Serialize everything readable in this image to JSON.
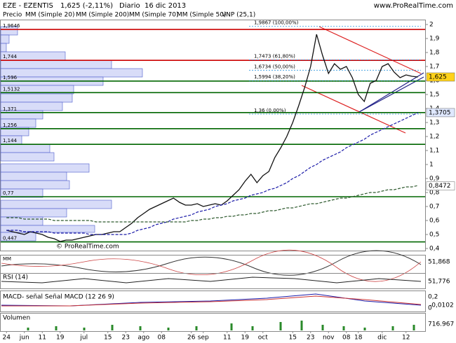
{
  "chart_data": {
    "type": "line",
    "site": "www.ProRealTime.com",
    "title": "EZE - EZENTIS",
    "last": "1,625 (-2,11%)",
    "period": "Diario",
    "date": "16 dic 2013",
    "legend_texts": [
      "Precio",
      "MM (Simple 20)",
      "MM (Simple 200)",
      "MM (Simple 70)",
      "MM (Simple 50)",
      "VNP (25,1)"
    ],
    "watermark": "© ProRealTime.com",
    "categories": [
      "24",
      null,
      null,
      "jun",
      null,
      null,
      "11",
      null,
      null,
      "19",
      null,
      null,
      null,
      "jul",
      null,
      null,
      null,
      "15",
      null,
      null,
      "23",
      null,
      null,
      "ago",
      null,
      null,
      "08",
      null,
      null,
      null,
      null,
      "26",
      null,
      "sep",
      null,
      null,
      null,
      "11",
      null,
      null,
      "19",
      null,
      null,
      "oct",
      null,
      null,
      null,
      null,
      "15",
      null,
      null,
      "23",
      null,
      null,
      "nov",
      null,
      null,
      "08",
      null,
      "18",
      null,
      null,
      null,
      "dic",
      null,
      null,
      null,
      "12",
      null,
      null
    ],
    "series": [
      {
        "name": "Precio",
        "color": "#111111",
        "values": [
          0.53,
          0.52,
          0.51,
          0.5,
          0.52,
          0.51,
          0.5,
          0.48,
          0.47,
          0.45,
          0.46,
          0.46,
          0.47,
          0.48,
          0.49,
          0.5,
          0.5,
          0.51,
          0.52,
          0.52,
          0.55,
          0.58,
          0.62,
          0.65,
          0.68,
          0.7,
          0.72,
          0.74,
          0.76,
          0.73,
          0.71,
          0.71,
          0.72,
          0.7,
          0.71,
          0.72,
          0.71,
          0.74,
          0.78,
          0.82,
          0.88,
          0.93,
          0.87,
          0.92,
          0.95,
          1.05,
          1.12,
          1.2,
          1.3,
          1.42,
          1.55,
          1.7,
          1.93,
          1.78,
          1.65,
          1.72,
          1.68,
          1.7,
          1.62,
          1.5,
          1.45,
          1.58,
          1.6,
          1.7,
          1.72,
          1.66,
          1.62,
          1.64,
          1.63,
          1.625
        ]
      },
      {
        "name": "MM (Simple 70)",
        "color": "#1a1aa8",
        "values": [
          0.53,
          0.53,
          0.53,
          0.52,
          0.52,
          0.52,
          0.52,
          0.52,
          0.51,
          0.51,
          0.51,
          0.51,
          0.51,
          0.51,
          0.5,
          0.5,
          0.5,
          0.5,
          0.5,
          0.5,
          0.5,
          0.51,
          0.53,
          0.54,
          0.55,
          0.57,
          0.58,
          0.59,
          0.61,
          0.62,
          0.63,
          0.64,
          0.66,
          0.67,
          0.68,
          0.7,
          0.71,
          0.72,
          0.74,
          0.75,
          0.76,
          0.78,
          0.79,
          0.8,
          0.82,
          0.83,
          0.85,
          0.87,
          0.9,
          0.92,
          0.95,
          0.98,
          1.0,
          1.03,
          1.05,
          1.07,
          1.09,
          1.12,
          1.14,
          1.16,
          1.18,
          1.21,
          1.23,
          1.25,
          1.27,
          1.29,
          1.31,
          1.33,
          1.35,
          1.37
        ]
      },
      {
        "name": "MM (Simple 200)",
        "color": "#2e5a2e",
        "values": [
          0.62,
          0.62,
          0.62,
          0.61,
          0.61,
          0.61,
          0.61,
          0.61,
          0.6,
          0.6,
          0.6,
          0.6,
          0.6,
          0.6,
          0.6,
          0.59,
          0.59,
          0.59,
          0.59,
          0.59,
          0.59,
          0.59,
          0.59,
          0.59,
          0.59,
          0.59,
          0.59,
          0.59,
          0.59,
          0.59,
          0.59,
          0.6,
          0.6,
          0.61,
          0.61,
          0.62,
          0.62,
          0.63,
          0.63,
          0.64,
          0.64,
          0.65,
          0.65,
          0.66,
          0.67,
          0.67,
          0.68,
          0.69,
          0.69,
          0.7,
          0.71,
          0.72,
          0.72,
          0.73,
          0.74,
          0.75,
          0.76,
          0.76,
          0.77,
          0.78,
          0.79,
          0.8,
          0.8,
          0.81,
          0.82,
          0.82,
          0.83,
          0.84,
          0.84,
          0.85
        ]
      }
    ],
    "ylim": [
      0.4,
      2.0
    ],
    "yticks": [
      {
        "value": 0.4,
        "label": "0,4"
      },
      {
        "value": 0.5,
        "label": "0,5"
      },
      {
        "value": 0.6,
        "label": "0,6"
      },
      {
        "value": 0.7,
        "label": "0,7"
      },
      {
        "value": 0.8,
        "label": "0,8"
      },
      {
        "value": 0.9,
        "label": "0,9"
      },
      1,
      {
        "value": 1.1,
        "label": "1,1"
      },
      {
        "value": 1.2,
        "label": "1,2"
      },
      {
        "value": 1.3,
        "label": "1,3"
      },
      {
        "value": 1.4,
        "label": "1,4"
      },
      {
        "value": 1.5,
        "label": "1,5"
      },
      {
        "value": 1.6,
        "label": "1,6"
      },
      {
        "value": 1.7,
        "label": "1,7"
      },
      {
        "value": 1.8,
        "label": "1,8"
      },
      {
        "value": 1.9,
        "label": "1,9"
      },
      2
    ],
    "levels": [
      {
        "value": 1.9646,
        "label": "1,9646",
        "color": "#cc0000"
      },
      {
        "value": 1.744,
        "label": "1,744",
        "color": "#cc0000"
      },
      {
        "value": 1.596,
        "label": "1,596",
        "color": "#006600"
      },
      {
        "value": 1.5132,
        "label": "1,5132",
        "color": "#006600"
      },
      {
        "value": 1.371,
        "label": "1,371",
        "color": "#006600"
      },
      {
        "value": 1.256,
        "label": "1,256",
        "color": "#006600"
      },
      {
        "value": 1.144,
        "label": "1,144",
        "color": "#006600"
      },
      {
        "value": 0.77,
        "label": "0,77",
        "color": "#006600"
      },
      {
        "value": 0.447,
        "label": "0,447",
        "color": "#006600"
      }
    ],
    "fibonacci": [
      {
        "value": 1.9867,
        "label": "1,9867 (100,00%)"
      },
      {
        "value": 1.7473,
        "label": "1,7473 (61,80%)"
      },
      {
        "value": 1.6734,
        "label": "1,6734 (50,00%)"
      },
      {
        "value": 1.5994,
        "label": "1,5994 (38,20%)"
      },
      {
        "value": 1.36,
        "label": "1,36 (0,00%)"
      }
    ],
    "last_values": [
      {
        "value": 1.625,
        "label": "1,625",
        "color": "#ffd21a"
      },
      {
        "value": 1.3705,
        "label": "1,3705",
        "color": "#dfe8ff"
      },
      {
        "value": 0.8472,
        "label": "0,8472",
        "color": "#ffffff"
      }
    ],
    "indicators": [
      {
        "name": "MM",
        "last": "51,868"
      },
      {
        "name": "RSI (14)",
        "last": "51,776"
      },
      {
        "name": "MACD- señal Señal MACD (12 26 9)",
        "last": "-0,0102",
        "ticks": [
          "0,2",
          "0"
        ]
      },
      {
        "name": "Volumen",
        "last": "716.967"
      }
    ]
  }
}
